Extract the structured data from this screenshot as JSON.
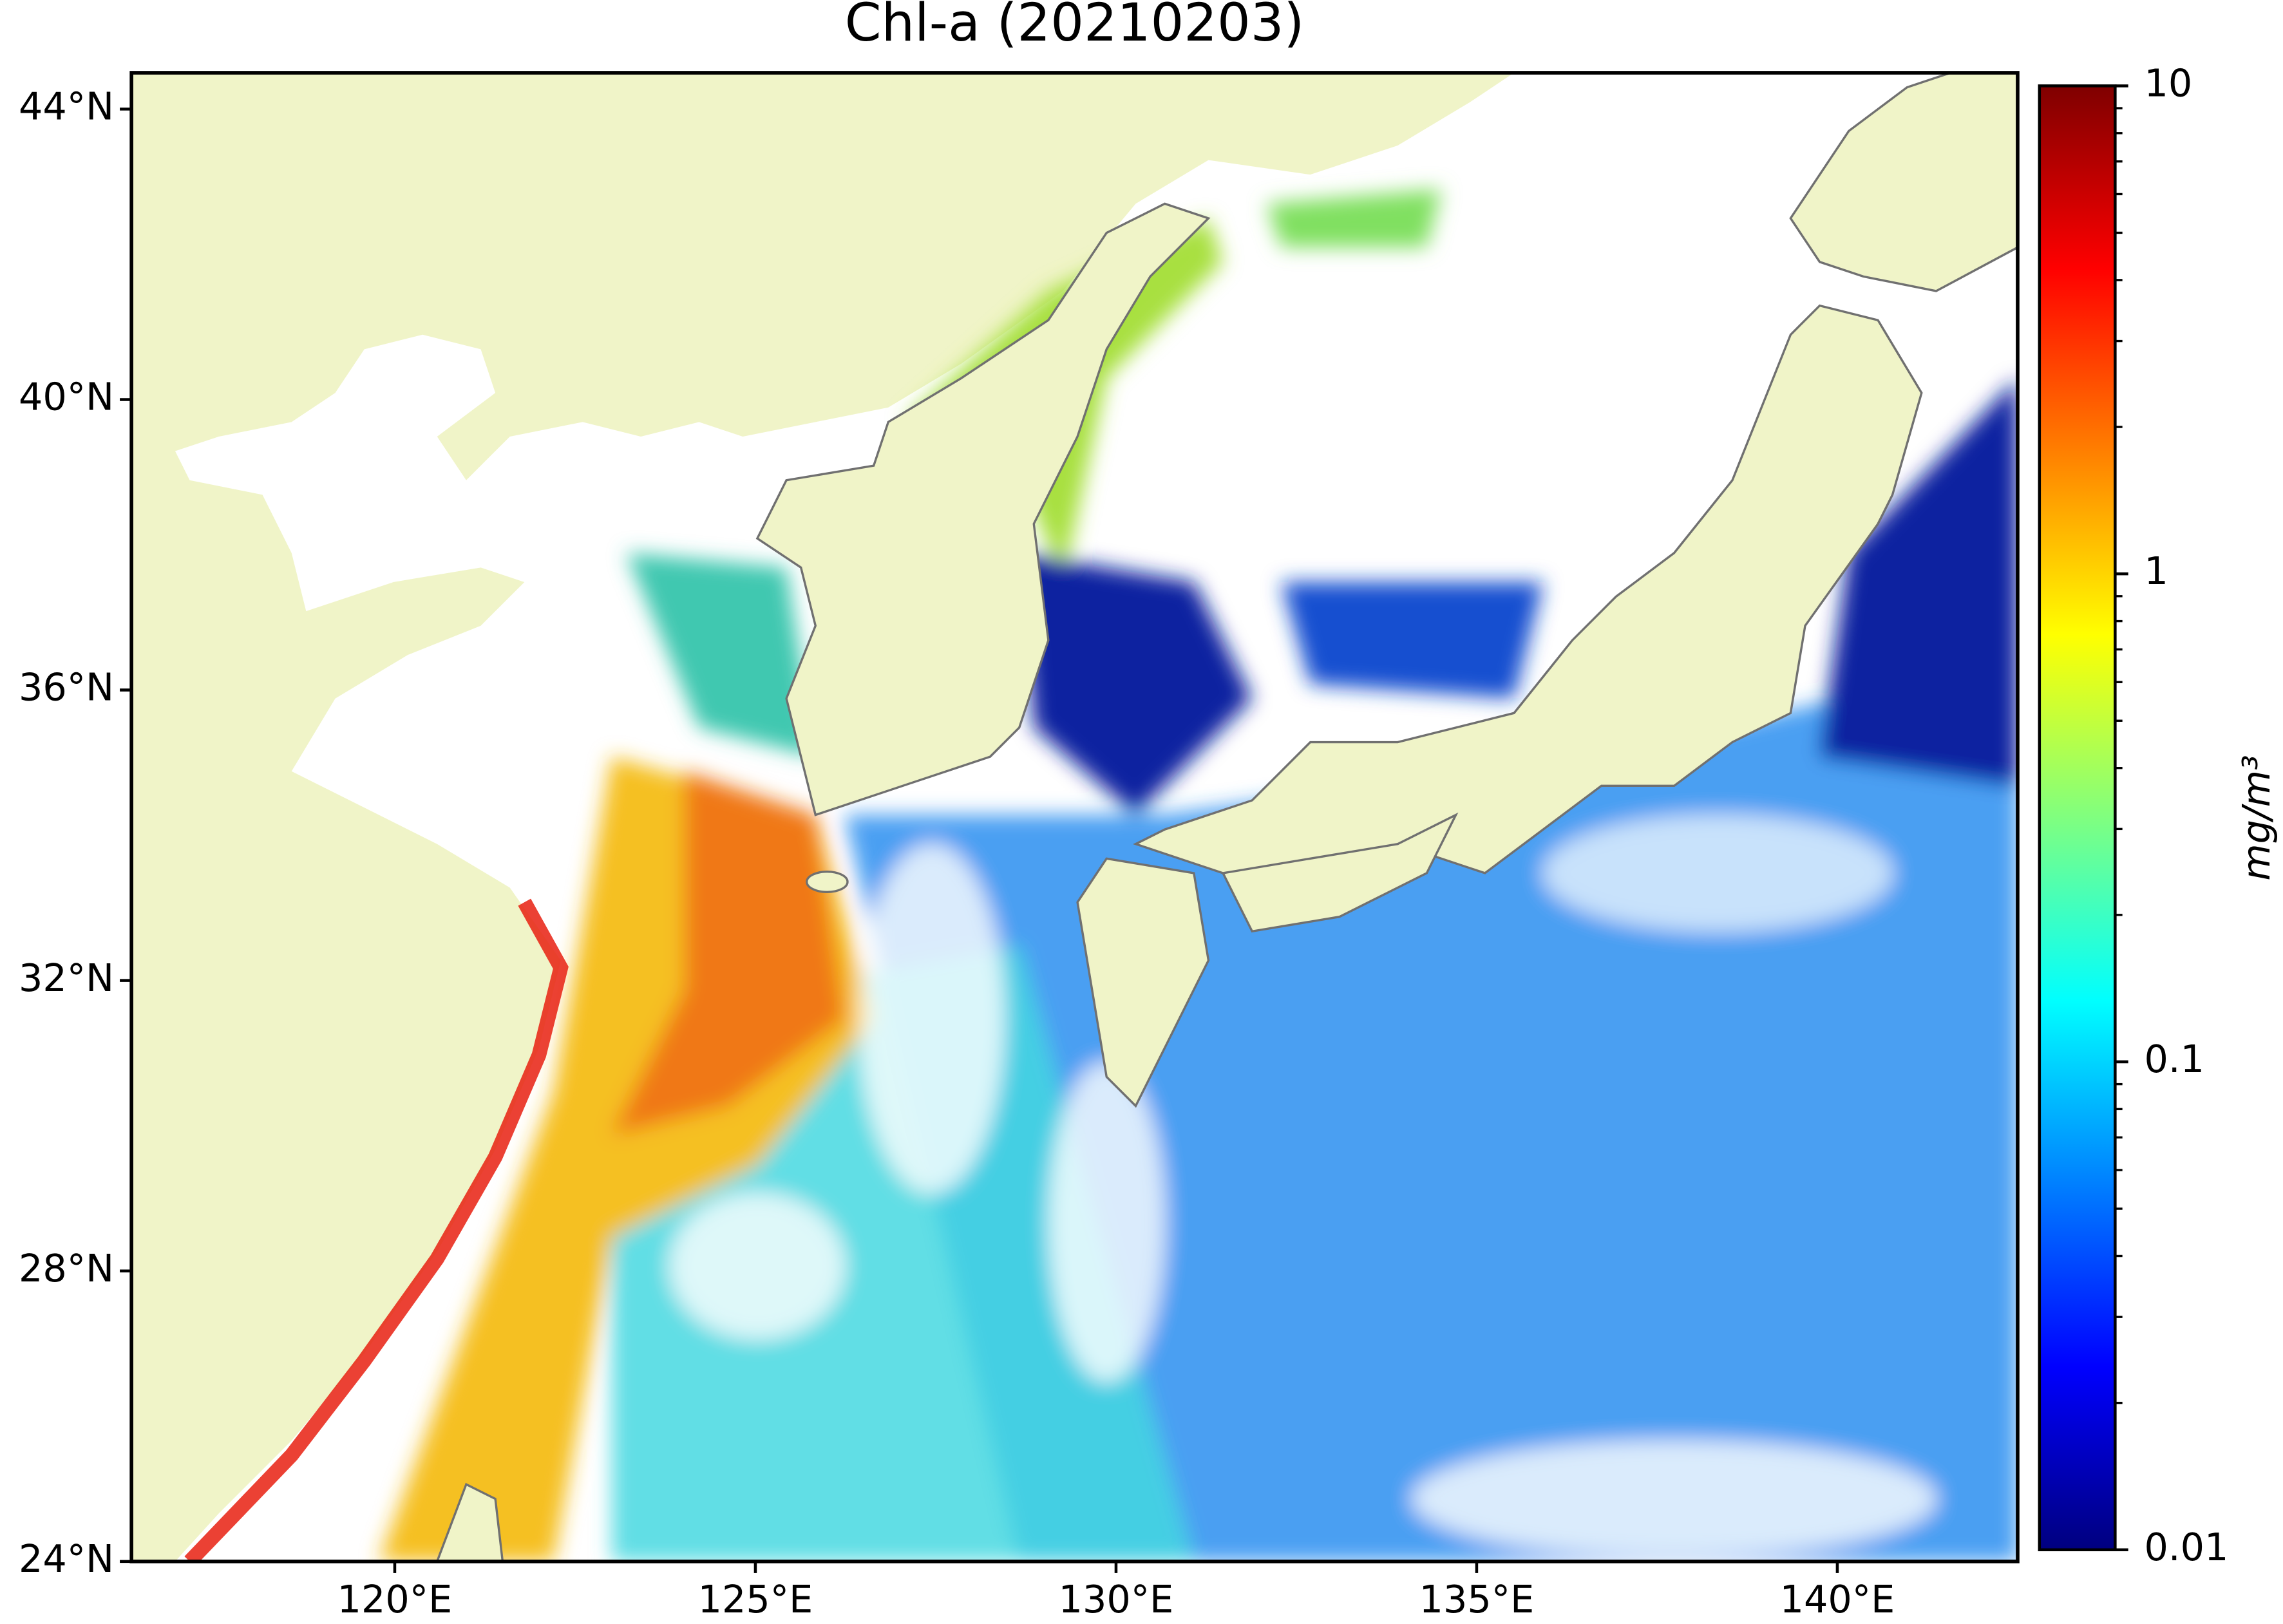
{
  "chart_data": {
    "type": "map",
    "title": "Chl-a (20210203)",
    "xlim": [
      116.35,
      142.5
    ],
    "xticks": [
      {
        "value": 120,
        "label": "120°E"
      },
      {
        "value": 125,
        "label": "125°E"
      },
      {
        "value": 130,
        "label": "130°E"
      },
      {
        "value": 135,
        "label": "135°E"
      },
      {
        "value": 140,
        "label": "140°E"
      }
    ],
    "ylim": [
      24,
      44.5
    ],
    "yticks": [
      {
        "value": 24,
        "label": "24°N"
      },
      {
        "value": 28,
        "label": "28°N"
      },
      {
        "value": 32,
        "label": "32°N"
      },
      {
        "value": 36,
        "label": "36°N"
      },
      {
        "value": 40,
        "label": "40°N"
      },
      {
        "value": 44,
        "label": "44°N"
      }
    ],
    "colorbar": {
      "label": "mg/m³",
      "log_scale": true,
      "lim": [
        0.01,
        10
      ],
      "ticks": [
        0.01,
        0.1,
        1,
        10
      ],
      "colormap": "jet"
    }
  }
}
